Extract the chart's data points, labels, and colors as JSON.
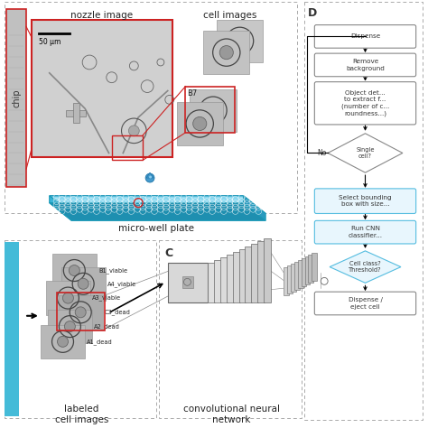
{
  "bg_color": "#ffffff",
  "red_color": "#cc2222",
  "blue_border": "#55bde0",
  "box_fill_lower": "#e8f6fd",
  "dashed_border": "#aaaaaa",
  "drop_color": "#4499cc",
  "gray_nozzle": "#c8c8c8",
  "panel_D_label": "D",
  "panel_C_label": "C",
  "scale_bar_label": "50 μm",
  "B7_label": "B7",
  "micro_well_label": "micro-well plate",
  "labeled_label": "labeled\ncell images",
  "cnn_label": "convolutional neural\nnetwork",
  "no_label": "No",
  "nozzle_label": "nozzle image",
  "cell_images_label": "cell images",
  "chip_label": "chip"
}
